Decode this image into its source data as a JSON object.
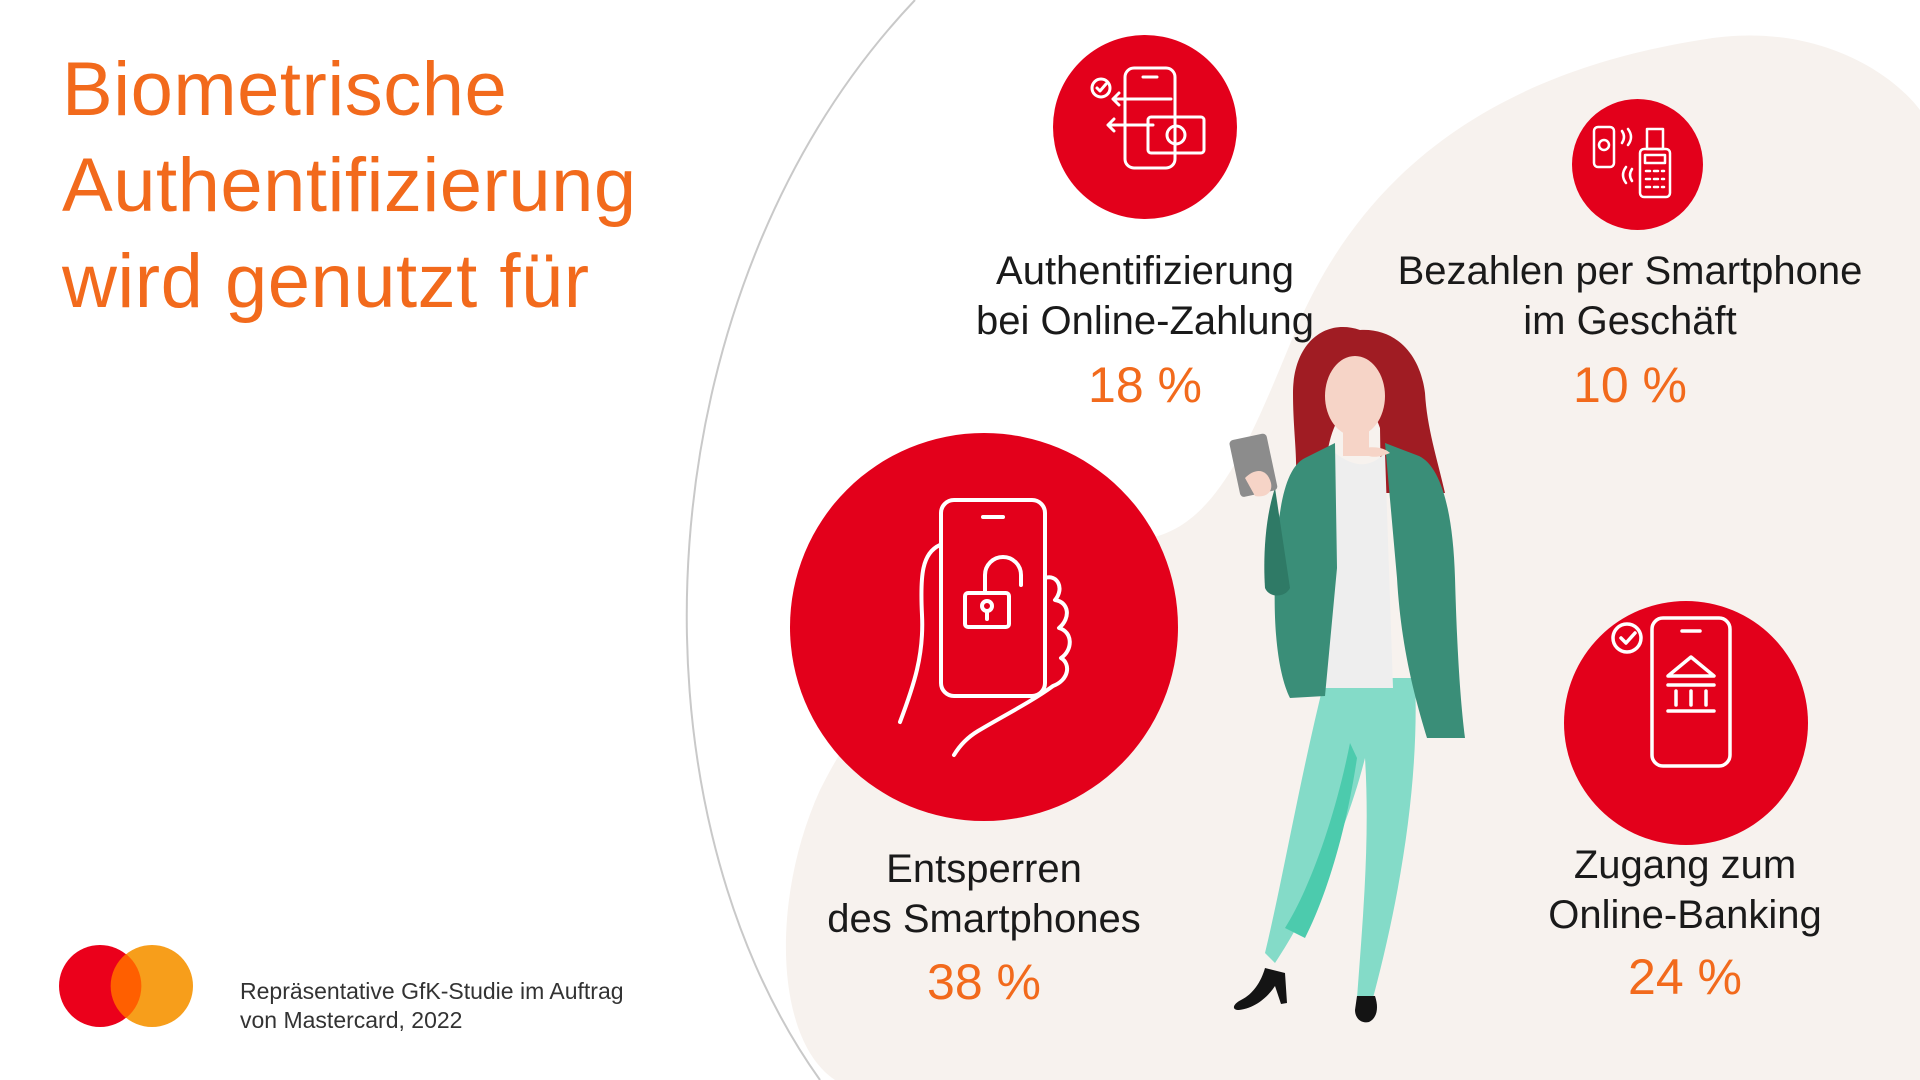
{
  "title_lines": [
    "Biometrische",
    "Authentifizierung",
    "wird genutzt für"
  ],
  "source_lines": [
    "Repräsentative GfK-Studie im Auftrag",
    "von Mastercard, 2022"
  ],
  "colors": {
    "accent_orange": "#f26a1c",
    "circle_red": "#e3001b",
    "blob": "#f7f2ee",
    "mc_red": "#eb001b",
    "mc_yellow": "#f79e1b",
    "mc_overlap": "#ff5f00"
  },
  "icons": [
    "payment-transfer-icon",
    "nfc-terminal-icon",
    "phone-unlock-icon",
    "online-banking-icon",
    "mastercard-logo"
  ],
  "chart_data": {
    "type": "infographic",
    "title": "Biometrische Authentifizierung wird genutzt für",
    "unit": "%",
    "items": [
      {
        "label_lines": [
          "Entsperren",
          "des Smartphones"
        ],
        "value": 38,
        "value_text": "38 %",
        "icon": "phone-unlock-icon"
      },
      {
        "label_lines": [
          "Zugang zum",
          "Online-Banking"
        ],
        "value": 24,
        "value_text": "24 %",
        "icon": "online-banking-icon"
      },
      {
        "label_lines": [
          "Authentifizierung",
          "bei Online-Zahlung"
        ],
        "value": 18,
        "value_text": "18 %",
        "icon": "payment-transfer-icon"
      },
      {
        "label_lines": [
          "Bezahlen per Smartphone",
          "im Geschäft"
        ],
        "value": 10,
        "value_text": "10 %",
        "icon": "nfc-terminal-icon"
      }
    ]
  }
}
